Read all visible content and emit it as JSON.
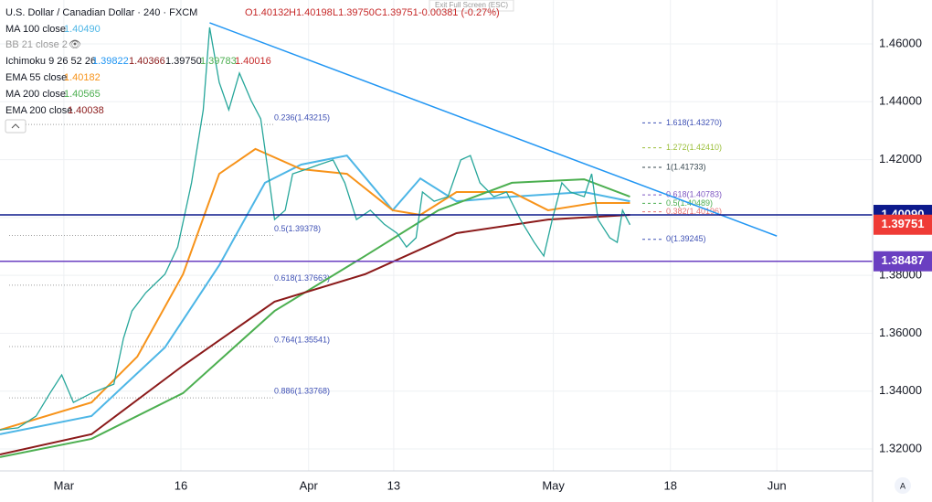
{
  "chart_data": {
    "type": "line",
    "header": {
      "title": "U.S. Dollar / Canadian Dollar · 240 · FXCM",
      "ohlc": [
        "O1.40132",
        "H1.40198",
        "L1.39750",
        "C1.39751",
        "-0.00381 (-0.27%)"
      ],
      "exit": "Exit Full Screen (ESC)",
      "corner": "A"
    },
    "xlim": [
      -6,
      76
    ],
    "ylim": [
      1.31242,
      1.47517
    ],
    "xticks": [
      {
        "value": 0,
        "label": "Mar"
      },
      {
        "value": 11,
        "label": "16"
      },
      {
        "value": 23,
        "label": "Apr"
      },
      {
        "value": 31,
        "label": "13"
      },
      {
        "value": 46,
        "label": "May"
      },
      {
        "value": 57,
        "label": "18"
      },
      {
        "value": 67,
        "label": "Jun"
      }
    ],
    "yticks": [
      {
        "value": 1.32,
        "label": "1.32000"
      },
      {
        "value": 1.34,
        "label": "1.34000"
      },
      {
        "value": 1.36,
        "label": "1.36000"
      },
      {
        "value": 1.38,
        "label": "1.38000"
      },
      {
        "value": 1.4,
        "label": "1.40000"
      },
      {
        "value": 1.42,
        "label": "1.42000"
      },
      {
        "value": 1.44,
        "label": "1.44000"
      },
      {
        "value": 1.46,
        "label": "1.46000"
      }
    ],
    "grid": true,
    "price": {
      "color": "#26a69a",
      "x": [
        -6,
        -4.3,
        -2.6,
        -1.3,
        -0.2,
        0.9,
        2.6,
        4.7,
        5.6,
        6.4,
        7.7,
        9.5,
        10.7,
        12,
        13.1,
        13.7,
        14.6,
        15.5,
        16.5,
        17.6,
        18.5,
        19.1,
        19.8,
        20.8,
        21.5,
        22.8,
        24,
        25.3,
        26.4,
        27.5,
        28.8,
        30.1,
        31.3,
        32.2,
        33.1,
        33.7,
        34.8,
        36.1,
        37.3,
        38.2,
        39.1,
        40.4,
        41.6,
        42.9,
        44.2,
        45.1,
        45.9,
        46.8,
        47.6,
        48.9,
        49.6,
        50.2,
        51.3,
        52,
        52.5,
        53.2
      ],
      "values": [
        1.3266,
        1.3273,
        1.3314,
        1.3393,
        1.3456,
        1.3361,
        1.3393,
        1.3424,
        1.3582,
        1.3677,
        1.374,
        1.3804,
        1.3898,
        1.412,
        1.4372,
        1.4657,
        1.4467,
        1.4372,
        1.4499,
        1.4404,
        1.4341,
        1.4183,
        1.3993,
        1.4025,
        1.4151,
        1.4167,
        1.4183,
        1.4199,
        1.412,
        1.3993,
        1.4025,
        1.3977,
        1.3946,
        1.3898,
        1.393,
        1.4088,
        1.4056,
        1.4072,
        1.4199,
        1.4214,
        1.412,
        1.4072,
        1.4088,
        1.3993,
        1.3914,
        1.3867,
        1.3993,
        1.412,
        1.4088,
        1.4072,
        1.4151,
        1.3993,
        1.393,
        1.3914,
        1.4025,
        1.3975
      ]
    },
    "series": [
      {
        "name": "MA 100 close",
        "value_label": "1.40490",
        "color": "#4db6e6",
        "x": [
          -6,
          2.6,
          9.5,
          14.6,
          18.9,
          22.3,
          26.6,
          30.9,
          33.5,
          36.9,
          42.1,
          48.9,
          53.2
        ],
        "values": [
          1.3251,
          1.3314,
          1.3551,
          1.3835,
          1.412,
          1.4183,
          1.4214,
          1.4025,
          1.4135,
          1.4056,
          1.4072,
          1.4088,
          1.4056
        ]
      },
      {
        "name": "EMA 55 close",
        "value_label": "1.40182",
        "color": "#f7931a",
        "x": [
          -6,
          2.6,
          6.9,
          11.2,
          14.6,
          18.0,
          22.3,
          26.6,
          30.9,
          33.5,
          36.9,
          42.1,
          45.5,
          49.8,
          53.2
        ],
        "values": [
          1.3266,
          1.3361,
          1.3519,
          1.3804,
          1.4151,
          1.4237,
          1.4167,
          1.4151,
          1.4025,
          1.4009,
          1.4088,
          1.4088,
          1.4025,
          1.405,
          1.405
        ]
      },
      {
        "name": "MA 200 close",
        "value_label": "1.40565",
        "color": "#4caf50",
        "x": [
          -6,
          2.6,
          11.2,
          19.8,
          28.3,
          35.2,
          42.1,
          48.9,
          53.2
        ],
        "values": [
          1.3172,
          1.3235,
          1.3393,
          1.3677,
          1.3867,
          1.4025,
          1.412,
          1.4132,
          1.4072
        ]
      },
      {
        "name": "EMA 200 close",
        "value_label": "1.40038",
        "color": "#8b1a1a",
        "x": [
          -6,
          2.6,
          11.2,
          19.8,
          28.3,
          36.9,
          45.5,
          53.2
        ],
        "values": [
          1.3181,
          1.3251,
          1.3488,
          1.3709,
          1.3804,
          1.3946,
          1.3993,
          1.4009
        ]
      }
    ],
    "indicators": [
      {
        "name": "BB 21 close 2"
      },
      {
        "name": "Ichimoku 9 26 52 26",
        "labels": [
          "1.39822",
          "1.40366",
          "1.39750",
          "1.39783",
          "1.40016"
        ],
        "colors": [
          "#2196f3",
          "#8b1a1a",
          "#131722",
          "#4caf50",
          "#c62828"
        ]
      }
    ],
    "trendline": {
      "color": "#2196f3",
      "x": [
        13.7,
        67.0
      ],
      "values": [
        1.4673,
        1.3936
      ]
    },
    "hlines": [
      {
        "value": 1.4009,
        "label": "1.40090",
        "color": "#0d1a8c"
      },
      {
        "value": 1.38487,
        "label": "1.38487",
        "color": "#6a3fc1"
      }
    ],
    "price_label": {
      "value": 1.39751,
      "label": "1.39751",
      "color": "#ef3b36"
    },
    "fib_left": [
      {
        "value": 1.43215,
        "label": "0.236(1.43215)"
      },
      {
        "value": 1.39378,
        "label": "0.5(1.39378)"
      },
      {
        "value": 1.37663,
        "label": "0.618(1.37663)"
      },
      {
        "value": 1.35541,
        "label": "0.764(1.35541)"
      },
      {
        "value": 1.33768,
        "label": "0.886(1.33768)"
      }
    ],
    "fib_right": [
      {
        "value": 1.4327,
        "label": "1.618(1.43270)",
        "color": "#3f51b5"
      },
      {
        "value": 1.4241,
        "label": "1.272(1.42410)",
        "color": "#9bbf3a"
      },
      {
        "value": 1.41733,
        "label": "1(1.41733)",
        "color": "#37474f"
      },
      {
        "value": 1.40783,
        "label": "0.618(1.40783)",
        "color": "#7e57c2"
      },
      {
        "value": 1.40489,
        "label": "0.5(1.40489)",
        "color": "#4caf50"
      },
      {
        "value": 1.40196,
        "label": "0.382(1.40196)",
        "color": "#e57373"
      },
      {
        "value": 1.39245,
        "label": "0(1.39245)",
        "color": "#3f51b5"
      }
    ]
  }
}
